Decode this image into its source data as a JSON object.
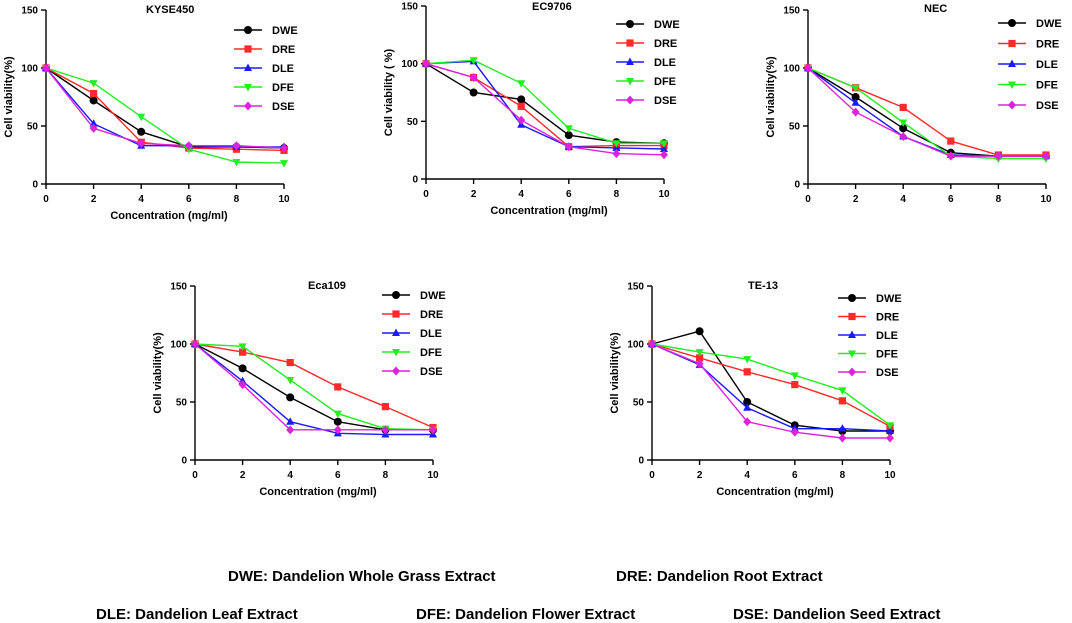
{
  "colors": {
    "DWE": "#000000",
    "DRE": "#ff2a2a",
    "DLE": "#1a1aff",
    "DFE": "#22ee22",
    "DSE": "#dd22dd"
  },
  "markers": {
    "DWE": "circle",
    "DRE": "square",
    "DLE": "triangle-up",
    "DFE": "triangle-down",
    "DSE": "diamond"
  },
  "chart_data": [
    {
      "type": "line",
      "title": "KYSE450",
      "xlabel": "Concentration (mg/ml)",
      "ylabel": "Cell viability(%)",
      "x": [
        0,
        2,
        4,
        6,
        8,
        10
      ],
      "xlim": [
        0,
        10
      ],
      "ylim": [
        0,
        150
      ],
      "xticks": [
        "0",
        "2",
        "4",
        "6",
        "8",
        "10"
      ],
      "yticks": [
        "0",
        "50",
        "100",
        "150"
      ],
      "series": [
        {
          "name": "DWE",
          "values": [
            100,
            72,
            45,
            32,
            32,
            31
          ]
        },
        {
          "name": "DRE",
          "values": [
            100,
            78,
            36,
            31,
            30,
            29
          ]
        },
        {
          "name": "DLE",
          "values": [
            100,
            52,
            33,
            33,
            32,
            32
          ]
        },
        {
          "name": "DFE",
          "values": [
            100,
            87,
            58,
            30,
            19,
            18
          ]
        },
        {
          "name": "DSE",
          "values": [
            100,
            48,
            35,
            33,
            33,
            31
          ]
        }
      ]
    },
    {
      "type": "line",
      "title": "EC9706",
      "xlabel": "Concentration (mg/ml)",
      "ylabel": "Cell viability ( %)",
      "x": [
        0,
        2,
        4,
        6,
        8,
        10
      ],
      "xlim": [
        0,
        10
      ],
      "ylim": [
        0,
        150
      ],
      "xticks": [
        "0",
        "2",
        "4",
        "6",
        "8",
        "10"
      ],
      "yticks": [
        "0",
        "50",
        "100",
        "150"
      ],
      "series": [
        {
          "name": "DWE",
          "values": [
            100,
            75,
            69,
            38,
            32,
            31
          ]
        },
        {
          "name": "DRE",
          "values": [
            100,
            88,
            63,
            28,
            29,
            29
          ]
        },
        {
          "name": "DLE",
          "values": [
            100,
            102,
            47,
            28,
            27,
            26
          ]
        },
        {
          "name": "DFE",
          "values": [
            100,
            103,
            83,
            44,
            31,
            31
          ]
        },
        {
          "name": "DSE",
          "values": [
            100,
            88,
            51,
            28,
            22,
            21
          ]
        }
      ]
    },
    {
      "type": "line",
      "title": "NEC",
      "xlabel": "",
      "ylabel": "Cell viability(%)",
      "x": [
        0,
        2,
        4,
        6,
        8,
        10
      ],
      "xlim": [
        0,
        10
      ],
      "ylim": [
        0,
        150
      ],
      "xticks": [
        "0",
        "2",
        "4",
        "6",
        "8",
        "10"
      ],
      "yticks": [
        "0",
        "50",
        "100",
        "150"
      ],
      "series": [
        {
          "name": "DWE",
          "values": [
            100,
            75,
            48,
            27,
            24,
            24
          ]
        },
        {
          "name": "DRE",
          "values": [
            100,
            83,
            66,
            37,
            25,
            25
          ]
        },
        {
          "name": "DLE",
          "values": [
            100,
            70,
            41,
            25,
            24,
            24
          ]
        },
        {
          "name": "DFE",
          "values": [
            100,
            83,
            53,
            24,
            22,
            22
          ]
        },
        {
          "name": "DSE",
          "values": [
            100,
            62,
            41,
            24,
            24,
            24
          ]
        }
      ]
    },
    {
      "type": "line",
      "title": "Eca109",
      "xlabel": "Concentration (mg/ml)",
      "ylabel": "Cell viability(%)",
      "x": [
        0,
        2,
        4,
        6,
        8,
        10
      ],
      "xlim": [
        0,
        10
      ],
      "ylim": [
        0,
        150
      ],
      "xticks": [
        "0",
        "2",
        "4",
        "6",
        "8",
        "10"
      ],
      "yticks": [
        "0",
        "50",
        "100",
        "150"
      ],
      "series": [
        {
          "name": "DWE",
          "values": [
            100,
            79,
            54,
            33,
            26,
            26
          ]
        },
        {
          "name": "DRE",
          "values": [
            100,
            93,
            84,
            63,
            46,
            28
          ]
        },
        {
          "name": "DLE",
          "values": [
            100,
            68,
            33,
            23,
            22,
            22
          ]
        },
        {
          "name": "DFE",
          "values": [
            100,
            98,
            69,
            40,
            27,
            26
          ]
        },
        {
          "name": "DSE",
          "values": [
            100,
            65,
            26,
            26,
            26,
            26
          ]
        }
      ]
    },
    {
      "type": "line",
      "title": "TE-13",
      "xlabel": "Concentration (mg/ml)",
      "ylabel": "Cell viability(%)",
      "x": [
        0,
        2,
        4,
        6,
        8,
        10
      ],
      "xlim": [
        0,
        10
      ],
      "ylim": [
        0,
        150
      ],
      "xticks": [
        "0",
        "2",
        "4",
        "6",
        "8",
        "10"
      ],
      "yticks": [
        "0",
        "50",
        "100",
        "150"
      ],
      "series": [
        {
          "name": "DWE",
          "values": [
            100,
            111,
            50,
            30,
            25,
            25
          ]
        },
        {
          "name": "DRE",
          "values": [
            100,
            88,
            76,
            65,
            51,
            29
          ]
        },
        {
          "name": "DLE",
          "values": [
            100,
            82,
            45,
            27,
            27,
            25
          ]
        },
        {
          "name": "DFE",
          "values": [
            100,
            93,
            87,
            73,
            60,
            30
          ]
        },
        {
          "name": "DSE",
          "values": [
            100,
            83,
            33,
            24,
            19,
            19
          ]
        }
      ]
    }
  ],
  "footnotes": {
    "dwe": "DWE: Dandelion Whole Grass Extract",
    "dre": "DRE: Dandelion Root Extract",
    "dle": "DLE: Dandelion Leaf Extract",
    "dfe": "DFE: Dandelion Flower Extract",
    "dse": "DSE: Dandelion Seed Extract"
  }
}
